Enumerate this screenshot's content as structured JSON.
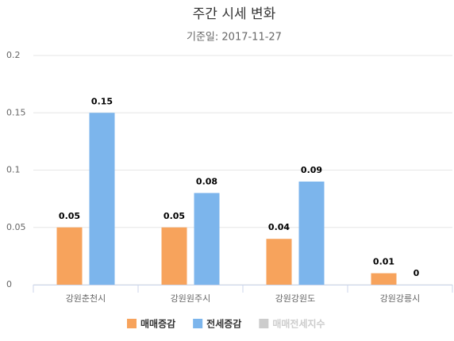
{
  "chart_data": {
    "type": "bar",
    "title": "주간 시세 변화",
    "subtitle": "기준일: 2017-11-27",
    "categories": [
      "강원춘천시",
      "강원원주시",
      "강원강원도",
      "강원강릉시"
    ],
    "series": [
      {
        "name": "매매증감",
        "color": "#f7a35c",
        "values": [
          0.05,
          0.05,
          0.04,
          0.01
        ]
      },
      {
        "name": "전세증감",
        "color": "#7cb5ec",
        "values": [
          0.15,
          0.08,
          0.09,
          0
        ]
      },
      {
        "name": "매매전세지수",
        "color": "#cccccc",
        "hidden": true,
        "values": [
          null,
          null,
          null,
          null
        ]
      }
    ],
    "ylim": [
      0,
      0.2
    ],
    "yticks": [
      0,
      0.05,
      0.1,
      0.15,
      0.2
    ],
    "grid": true,
    "legend": "bottom"
  }
}
